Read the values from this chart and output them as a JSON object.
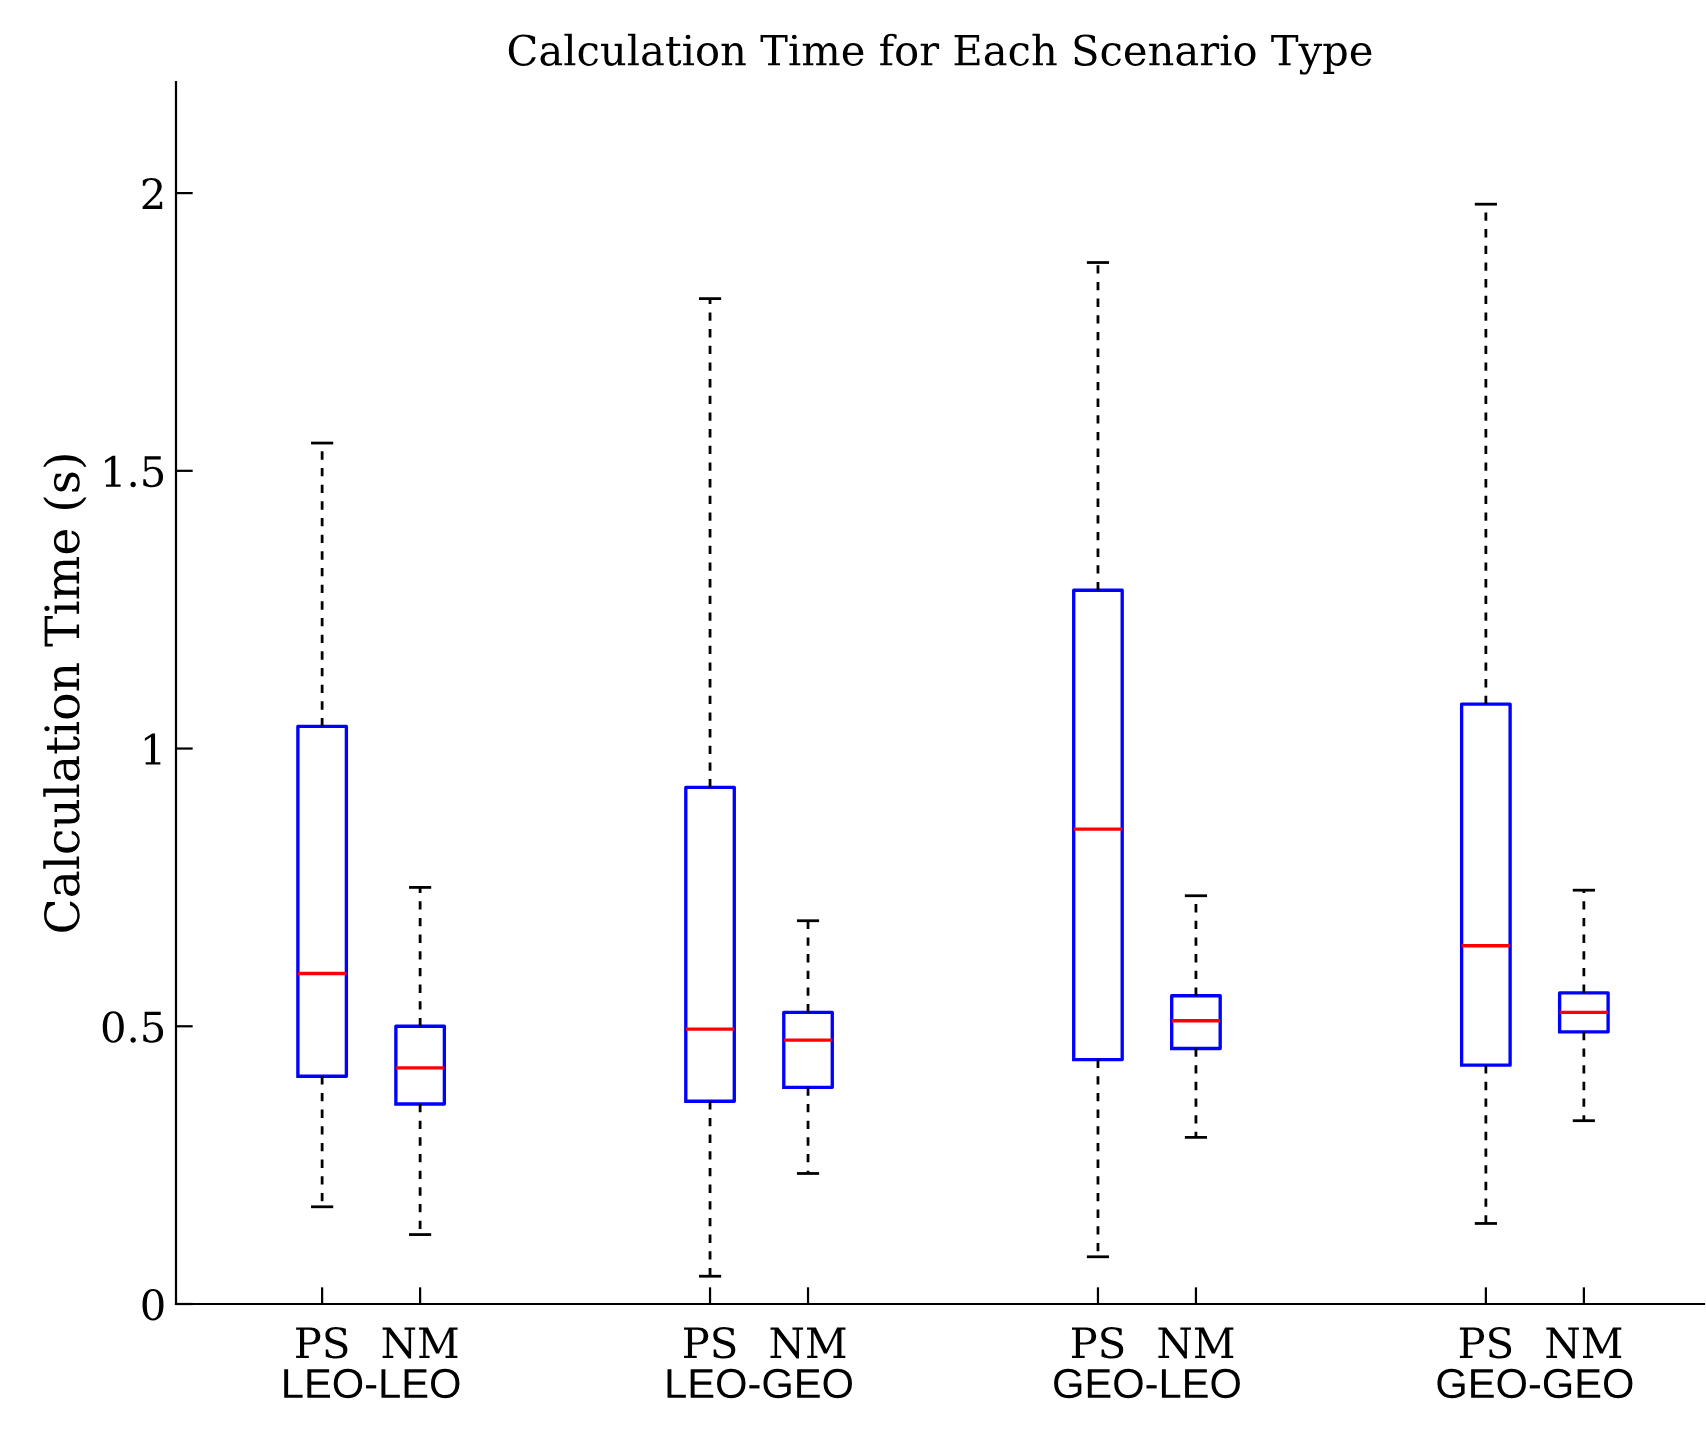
{
  "chart_data": {
    "type": "box",
    "title": "Calculation Time for Each Scenario Type",
    "ylabel": "Calculation Time (s)",
    "categories": [
      "PS",
      "NM",
      "PS",
      "NM",
      "PS",
      "NM",
      "PS",
      "NM"
    ],
    "annotations": [
      "LEO-LEO",
      "LEO-GEO",
      "GEO-LEO",
      "GEO-GEO"
    ],
    "series": [
      {
        "color": "#0000ff",
        "boxes": [
          {
            "low": 0.175,
            "q1": 0.41,
            "median": 0.595,
            "q3": 1.04,
            "high": 1.55
          },
          {
            "low": 0.125,
            "q1": 0.36,
            "median": 0.425,
            "q3": 0.5,
            "high": 0.75
          },
          {
            "low": 0.05,
            "q1": 0.365,
            "median": 0.495,
            "q3": 0.93,
            "high": 1.81
          },
          {
            "low": 0.235,
            "q1": 0.39,
            "median": 0.475,
            "q3": 0.525,
            "high": 0.69
          },
          {
            "low": 0.085,
            "q1": 0.44,
            "median": 0.855,
            "q3": 1.285,
            "high": 1.875
          },
          {
            "low": 0.3,
            "q1": 0.46,
            "median": 0.51,
            "q3": 0.555,
            "high": 0.735
          },
          {
            "low": 0.145,
            "q1": 0.43,
            "median": 0.645,
            "q3": 1.08,
            "high": 1.98
          },
          {
            "low": 0.33,
            "q1": 0.49,
            "median": 0.525,
            "q3": 0.56,
            "high": 0.745
          }
        ]
      }
    ],
    "ylim": [
      0,
      2.2
    ],
    "yticks": [
      0,
      0.5,
      1,
      1.5,
      2
    ],
    "grid": false
  }
}
